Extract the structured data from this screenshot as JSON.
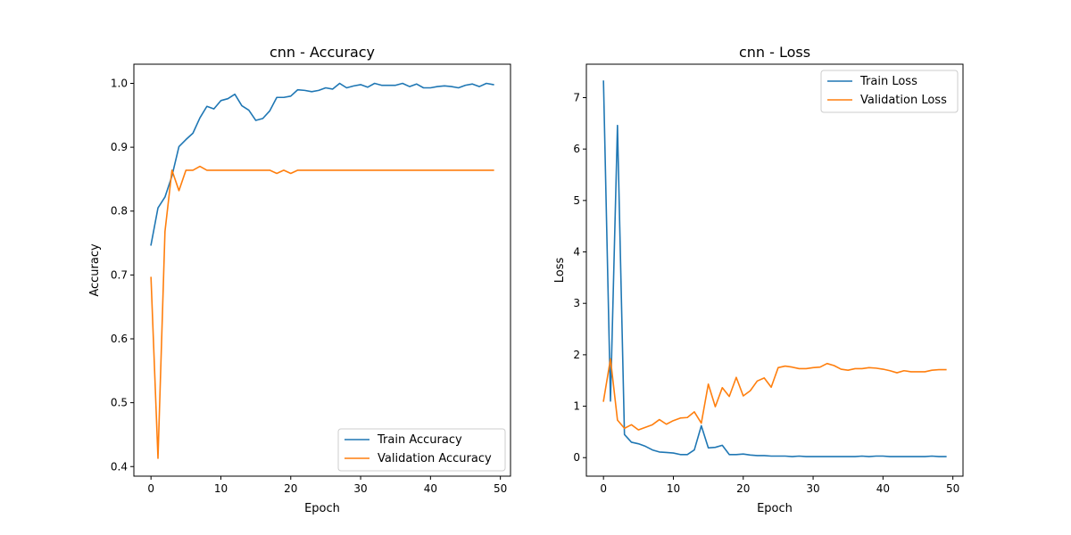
{
  "chart_data": [
    {
      "type": "line",
      "title": "cnn - Accuracy",
      "xlabel": "Epoch",
      "ylabel": "Accuracy",
      "xlim": [
        -2.45,
        51.45
      ],
      "ylim": [
        0.385,
        1.03
      ],
      "xticks": [
        0,
        10,
        20,
        30,
        40,
        50
      ],
      "yticks": [
        0.4,
        0.5,
        0.6,
        0.7,
        0.8,
        0.9,
        1.0
      ],
      "ytick_format": 1,
      "legend_position": "bottom-right",
      "grid": false,
      "x": [
        0,
        1,
        2,
        3,
        4,
        5,
        6,
        7,
        8,
        9,
        10,
        11,
        12,
        13,
        14,
        15,
        16,
        17,
        18,
        19,
        20,
        21,
        22,
        23,
        24,
        25,
        26,
        27,
        28,
        29,
        30,
        31,
        32,
        33,
        34,
        35,
        36,
        37,
        38,
        39,
        40,
        41,
        42,
        43,
        44,
        45,
        46,
        47,
        48,
        49
      ],
      "series": [
        {
          "name": "Train Accuracy",
          "color": "#1f77b4",
          "values": [
            0.747,
            0.805,
            0.822,
            0.855,
            0.901,
            0.912,
            0.922,
            0.946,
            0.964,
            0.96,
            0.973,
            0.976,
            0.983,
            0.965,
            0.958,
            0.942,
            0.945,
            0.957,
            0.978,
            0.978,
            0.98,
            0.99,
            0.989,
            0.987,
            0.989,
            0.993,
            0.991,
            1.0,
            0.993,
            0.996,
            0.998,
            0.994,
            1.0,
            0.997,
            0.997,
            0.997,
            1.0,
            0.995,
            0.999,
            0.993,
            0.993,
            0.995,
            0.996,
            0.995,
            0.993,
            0.997,
            0.999,
            0.995,
            1.0,
            0.998
          ]
        },
        {
          "name": "Validation Accuracy",
          "color": "#ff7f0e",
          "values": [
            0.696,
            0.413,
            0.768,
            0.864,
            0.832,
            0.864,
            0.864,
            0.87,
            0.864,
            0.864,
            0.864,
            0.864,
            0.864,
            0.864,
            0.864,
            0.864,
            0.864,
            0.864,
            0.859,
            0.864,
            0.859,
            0.864,
            0.864,
            0.864,
            0.864,
            0.864,
            0.864,
            0.864,
            0.864,
            0.864,
            0.864,
            0.864,
            0.864,
            0.864,
            0.864,
            0.864,
            0.864,
            0.864,
            0.864,
            0.864,
            0.864,
            0.864,
            0.864,
            0.864,
            0.864,
            0.864,
            0.864,
            0.864,
            0.864,
            0.864
          ]
        }
      ]
    },
    {
      "type": "line",
      "title": "cnn - Loss",
      "xlabel": "Epoch",
      "ylabel": "Loss",
      "xlim": [
        -2.45,
        51.45
      ],
      "ylim": [
        -0.36,
        7.65
      ],
      "xticks": [
        0,
        10,
        20,
        30,
        40,
        50
      ],
      "yticks": [
        0,
        1,
        2,
        3,
        4,
        5,
        6,
        7
      ],
      "ytick_format": 0,
      "legend_position": "top-right",
      "grid": false,
      "x": [
        0,
        1,
        2,
        3,
        4,
        5,
        6,
        7,
        8,
        9,
        10,
        11,
        12,
        13,
        14,
        15,
        16,
        17,
        18,
        19,
        20,
        21,
        22,
        23,
        24,
        25,
        26,
        27,
        28,
        29,
        30,
        31,
        32,
        33,
        34,
        35,
        36,
        37,
        38,
        39,
        40,
        41,
        42,
        43,
        44,
        45,
        46,
        47,
        48,
        49
      ],
      "series": [
        {
          "name": "Train Loss",
          "color": "#1f77b4",
          "values": [
            7.32,
            1.1,
            6.46,
            0.45,
            0.3,
            0.27,
            0.22,
            0.15,
            0.11,
            0.1,
            0.09,
            0.06,
            0.06,
            0.15,
            0.62,
            0.19,
            0.2,
            0.24,
            0.06,
            0.06,
            0.07,
            0.05,
            0.04,
            0.04,
            0.03,
            0.03,
            0.03,
            0.02,
            0.03,
            0.02,
            0.02,
            0.02,
            0.02,
            0.02,
            0.02,
            0.02,
            0.02,
            0.03,
            0.02,
            0.03,
            0.03,
            0.02,
            0.02,
            0.02,
            0.02,
            0.02,
            0.02,
            0.03,
            0.02,
            0.02
          ]
        },
        {
          "name": "Validation Loss",
          "color": "#ff7f0e",
          "values": [
            1.1,
            1.92,
            0.73,
            0.57,
            0.64,
            0.54,
            0.59,
            0.64,
            0.74,
            0.65,
            0.72,
            0.77,
            0.78,
            0.89,
            0.67,
            1.43,
            0.99,
            1.36,
            1.19,
            1.56,
            1.2,
            1.3,
            1.49,
            1.55,
            1.37,
            1.75,
            1.78,
            1.76,
            1.73,
            1.73,
            1.75,
            1.76,
            1.83,
            1.79,
            1.72,
            1.7,
            1.73,
            1.73,
            1.75,
            1.74,
            1.72,
            1.69,
            1.65,
            1.69,
            1.67,
            1.67,
            1.67,
            1.7,
            1.71,
            1.71
          ]
        }
      ]
    }
  ]
}
